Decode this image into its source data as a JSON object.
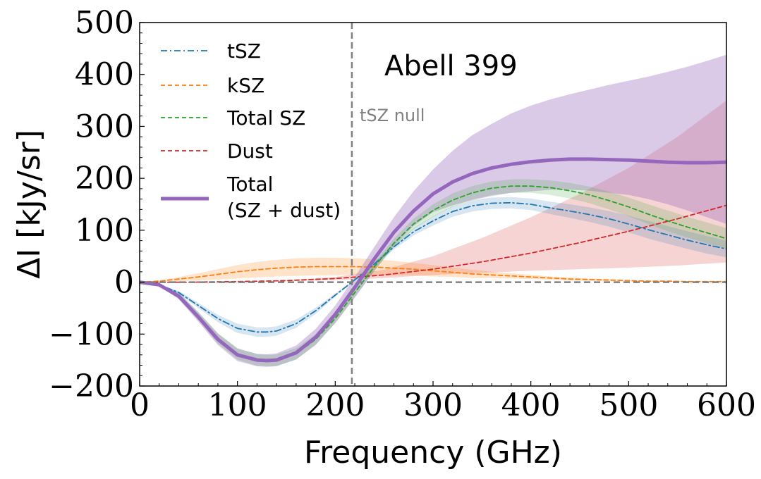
{
  "chart_data": {
    "type": "line",
    "title": "Abell 399",
    "xlabel": "Frequency (GHz)",
    "ylabel": "ΔI [kJy/sr]",
    "xlim": [
      0,
      600
    ],
    "ylim": [
      -200,
      500
    ],
    "xticks": [
      0,
      100,
      200,
      300,
      400,
      500,
      600
    ],
    "yticks": [
      -200,
      -100,
      0,
      100,
      200,
      300,
      400,
      500
    ],
    "xtick_labels": [
      "0",
      "100",
      "200",
      "300",
      "400",
      "500",
      "600"
    ],
    "ytick_labels": [
      "−200",
      "−100",
      "0",
      "100",
      "200",
      "300",
      "400",
      "500"
    ],
    "grid": false,
    "legend_position": "top-left",
    "reference_lines": [
      {
        "orientation": "vertical",
        "value": 217,
        "label": "tSZ null",
        "color": "#808080",
        "style": "dashed"
      },
      {
        "orientation": "horizontal",
        "value": 0,
        "label": "",
        "color": "#808080",
        "style": "dashed"
      }
    ],
    "series": [
      {
        "name": "tSZ",
        "color": "#1f77b4",
        "style": "dashdot",
        "x": [
          0,
          20,
          40,
          60,
          80,
          100,
          120,
          130,
          140,
          160,
          180,
          200,
          217,
          240,
          260,
          280,
          300,
          320,
          340,
          360,
          380,
          400,
          420,
          440,
          460,
          480,
          500,
          520,
          540,
          560,
          580,
          600
        ],
        "y": [
          0,
          -5,
          -20,
          -45,
          -70,
          -89,
          -96,
          -96,
          -94,
          -80,
          -55,
          -25,
          0,
          35,
          68,
          97,
          118,
          136,
          147,
          152,
          153,
          150,
          143,
          137,
          130,
          122,
          112,
          101,
          91,
          81,
          72,
          64
        ],
        "band_upper": [
          0,
          -4,
          -17,
          -40,
          -63,
          -80,
          -87,
          -87,
          -85,
          -72,
          -49,
          -22,
          1,
          38,
          73,
          104,
          127,
          146,
          158,
          163,
          164,
          161,
          155,
          150,
          144,
          137,
          128,
          118,
          108,
          98,
          89,
          80
        ],
        "band_lower": [
          0,
          -6,
          -23,
          -50,
          -77,
          -98,
          -105,
          -105,
          -103,
          -88,
          -61,
          -28,
          -1,
          32,
          63,
          90,
          109,
          126,
          136,
          141,
          142,
          139,
          131,
          124,
          116,
          107,
          96,
          84,
          74,
          64,
          55,
          48
        ]
      },
      {
        "name": "kSZ",
        "color": "#ff7f0e",
        "style": "dashed",
        "x": [
          0,
          20,
          40,
          60,
          80,
          100,
          120,
          140,
          160,
          180,
          200,
          220,
          240,
          260,
          280,
          300,
          320,
          340,
          360,
          380,
          400,
          420,
          440,
          460,
          480,
          500,
          520,
          540,
          560,
          580,
          600
        ],
        "y": [
          0,
          2,
          6,
          10,
          15,
          20,
          24,
          27,
          29,
          30,
          30,
          30,
          29,
          27,
          25,
          22,
          19,
          16,
          14,
          12,
          10,
          8,
          6,
          5,
          4,
          3,
          2,
          2,
          1,
          1,
          1
        ],
        "band_upper": [
          0,
          3,
          10,
          17,
          25,
          33,
          39,
          43,
          46,
          47,
          47,
          46,
          44,
          41,
          37,
          33,
          28,
          24,
          20,
          17,
          14,
          11,
          9,
          7,
          6,
          4,
          3,
          3,
          2,
          2,
          2
        ],
        "band_lower": [
          0,
          1,
          2,
          3,
          5,
          7,
          9,
          11,
          12,
          13,
          13,
          14,
          14,
          13,
          13,
          11,
          10,
          8,
          8,
          7,
          6,
          5,
          3,
          3,
          2,
          2,
          1,
          1,
          0,
          0,
          0
        ]
      },
      {
        "name": "Total SZ",
        "color": "#2ca02c",
        "style": "dashed",
        "x": [
          0,
          20,
          40,
          60,
          80,
          100,
          120,
          135,
          140,
          160,
          180,
          200,
          220,
          240,
          260,
          280,
          300,
          320,
          340,
          360,
          380,
          400,
          420,
          440,
          460,
          480,
          500,
          520,
          540,
          560,
          580,
          600
        ],
        "y": [
          0,
          -5,
          -25,
          -65,
          -108,
          -138,
          -150,
          -151,
          -150,
          -138,
          -110,
          -70,
          -20,
          30,
          75,
          112,
          138,
          158,
          172,
          181,
          185,
          185,
          182,
          176,
          168,
          157,
          145,
          131,
          118,
          106,
          95,
          84
        ],
        "band_upper": [
          0,
          -4,
          -21,
          -57,
          -98,
          -127,
          -139,
          -140,
          -139,
          -127,
          -100,
          -61,
          -12,
          38,
          84,
          122,
          150,
          171,
          185,
          194,
          198,
          198,
          196,
          191,
          184,
          174,
          163,
          150,
          138,
          126,
          115,
          104
        ],
        "band_lower": [
          0,
          -6,
          -29,
          -73,
          -118,
          -149,
          -161,
          -162,
          -161,
          -149,
          -120,
          -79,
          -28,
          22,
          66,
          102,
          126,
          145,
          159,
          168,
          172,
          172,
          168,
          161,
          152,
          140,
          127,
          112,
          98,
          86,
          75,
          64
        ]
      },
      {
        "name": "Dust",
        "color": "#d62728",
        "style": "dashed",
        "x": [
          0,
          50,
          100,
          150,
          200,
          250,
          300,
          350,
          400,
          450,
          500,
          550,
          600
        ],
        "y": [
          0,
          0,
          1,
          3,
          7,
          14,
          25,
          39,
          56,
          76,
          98,
          122,
          148
        ],
        "band_upper": [
          0,
          0,
          1,
          4,
          10,
          24,
          50,
          85,
          125,
          170,
          220,
          280,
          350
        ],
        "band_lower": [
          0,
          0,
          0,
          2,
          4,
          8,
          14,
          18,
          22,
          25,
          28,
          32,
          38
        ]
      },
      {
        "name": "Total\n(SZ + dust)",
        "color": "#9467bd",
        "style": "solid",
        "x": [
          0,
          20,
          40,
          60,
          80,
          100,
          120,
          130,
          140,
          160,
          180,
          200,
          220,
          240,
          260,
          280,
          300,
          320,
          340,
          360,
          380,
          400,
          420,
          440,
          460,
          480,
          500,
          520,
          540,
          560,
          580,
          600
        ],
        "y": [
          0,
          -5,
          -27,
          -67,
          -110,
          -140,
          -150,
          -151,
          -150,
          -136,
          -106,
          -62,
          -10,
          45,
          96,
          137,
          170,
          193,
          209,
          220,
          227,
          232,
          235,
          237,
          237,
          236,
          235,
          233,
          231,
          230,
          230,
          231
        ],
        "band_upper": [
          0,
          -3,
          -20,
          -58,
          -99,
          -128,
          -138,
          -139,
          -137,
          -122,
          -90,
          -45,
          10,
          68,
          125,
          175,
          217,
          253,
          283,
          305,
          325,
          340,
          352,
          362,
          371,
          380,
          388,
          396,
          405,
          415,
          426,
          438
        ],
        "band_lower": [
          0,
          -7,
          -33,
          -76,
          -121,
          -152,
          -162,
          -163,
          -162,
          -149,
          -121,
          -79,
          -30,
          22,
          70,
          108,
          135,
          148,
          158,
          166,
          172,
          175,
          178,
          178,
          176,
          172,
          168,
          160,
          150,
          138,
          125,
          112
        ]
      }
    ]
  }
}
